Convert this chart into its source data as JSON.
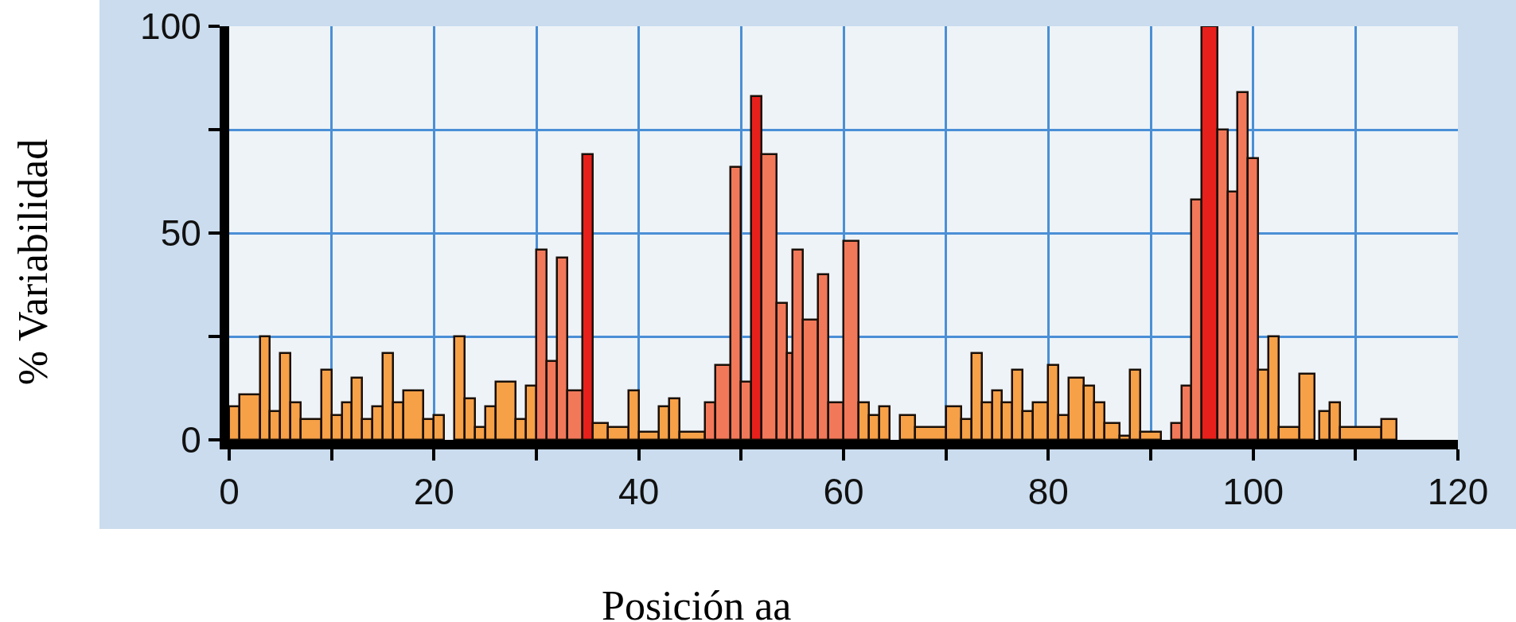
{
  "chart_data": {
    "type": "histogram",
    "xlabel": "Posición aa",
    "ylabel": "% Variabilidad",
    "bins": [
      0,
      1,
      3,
      4,
      5,
      6,
      7,
      9,
      10,
      11,
      12,
      13,
      14,
      15,
      16,
      17,
      19,
      20,
      21,
      22,
      23,
      24,
      25,
      26,
      28,
      29,
      30,
      31,
      32,
      33,
      34.5,
      35.5,
      37,
      39,
      40,
      42,
      43,
      44,
      46.5,
      47.5,
      49,
      50,
      51,
      52,
      53.5,
      54.5,
      55,
      56,
      57.5,
      58.5,
      60,
      61.5,
      62.5,
      63.5,
      64.5,
      65.5,
      67,
      70,
      71.5,
      72.5,
      73.5,
      74.5,
      75.5,
      76.5,
      77.5,
      78.5,
      80,
      81,
      82,
      83.5,
      84.5,
      85.5,
      87,
      88,
      89,
      91,
      92,
      93,
      94,
      95,
      96.5,
      97.5,
      98.5,
      99.5,
      100.5,
      101.5,
      102.5,
      104.5,
      106,
      106.5,
      107.5,
      108.5,
      112.5,
      114
    ],
    "values": [
      8,
      11,
      25,
      7,
      21,
      9,
      5,
      17,
      6,
      9,
      15,
      5,
      8,
      21,
      9,
      12,
      5,
      6,
      null,
      25,
      10,
      3,
      8,
      14,
      5,
      13,
      46,
      19,
      44,
      12,
      69,
      4,
      3,
      12,
      2,
      8,
      10,
      2,
      9,
      18,
      66,
      14,
      83,
      69,
      33,
      21,
      46,
      29,
      40,
      9,
      48,
      9,
      6,
      8,
      null,
      6,
      3,
      8,
      5,
      21,
      9,
      12,
      9,
      17,
      7,
      9,
      18,
      6,
      15,
      13,
      9,
      4,
      1,
      17,
      2,
      null,
      4,
      13,
      58,
      100,
      75,
      60,
      84,
      68,
      17,
      25,
      3,
      16,
      null,
      7,
      9,
      3,
      5
    ],
    "colors": [
      "#f6a048",
      "#f6a048",
      "#f6a048",
      "#f6a048",
      "#f6a048",
      "#f6a048",
      "#f6a048",
      "#f6a048",
      "#f6a048",
      "#f6a048",
      "#f6a048",
      "#f6a048",
      "#f6a048",
      "#f6a048",
      "#f6a048",
      "#f6a048",
      "#f6a048",
      "#f6a048",
      "#f6a048",
      "#f6a048",
      "#f6a048",
      "#f6a048",
      "#f6a048",
      "#f6a048",
      "#f6a048",
      "#f6a048",
      "#f2785a",
      "#f2785a",
      "#f2785a",
      "#f2785a",
      "#e8201c",
      "#f6a048",
      "#f6a048",
      "#f6a048",
      "#f6a048",
      "#f6a048",
      "#f6a048",
      "#f6a048",
      "#f2785a",
      "#f2785a",
      "#f2785a",
      "#f2785a",
      "#e8201c",
      "#f2785a",
      "#f2785a",
      "#f2785a",
      "#f2785a",
      "#f2785a",
      "#f2785a",
      "#f2785a",
      "#f2785a",
      "#f6a048",
      "#f6a048",
      "#f6a048",
      "#f6a048",
      "#f6a048",
      "#f6a048",
      "#f6a048",
      "#f6a048",
      "#f6a048",
      "#f6a048",
      "#f6a048",
      "#f6a048",
      "#f6a048",
      "#f6a048",
      "#f6a048",
      "#f6a048",
      "#f6a048",
      "#f6a048",
      "#f6a048",
      "#f6a048",
      "#f6a048",
      "#f6a048",
      "#f6a048",
      "#f6a048",
      "#f6a048",
      "#f2785a",
      "#f2785a",
      "#f2785a",
      "#e8201c",
      "#f2785a",
      "#f2785a",
      "#f2785a",
      "#f2785a",
      "#f6a048",
      "#f6a048",
      "#f6a048",
      "#f6a048",
      "#f6a048",
      "#f6a048",
      "#f6a048",
      "#f6a048",
      "#f6a048"
    ],
    "xlim": [
      0,
      120
    ],
    "xticks": [
      0,
      {
        "value": 10,
        "label": null
      },
      20,
      {
        "value": 30,
        "label": null
      },
      40,
      {
        "value": 50,
        "label": null
      },
      60,
      {
        "value": 70,
        "label": null
      },
      80,
      {
        "value": 90,
        "label": null
      },
      100,
      {
        "value": 110,
        "label": null
      },
      120
    ],
    "ylim": [
      0,
      100
    ],
    "yticks": [
      0,
      {
        "value": 25,
        "label": null
      },
      50,
      {
        "value": 75,
        "label": null
      },
      100
    ],
    "grid": true
  }
}
